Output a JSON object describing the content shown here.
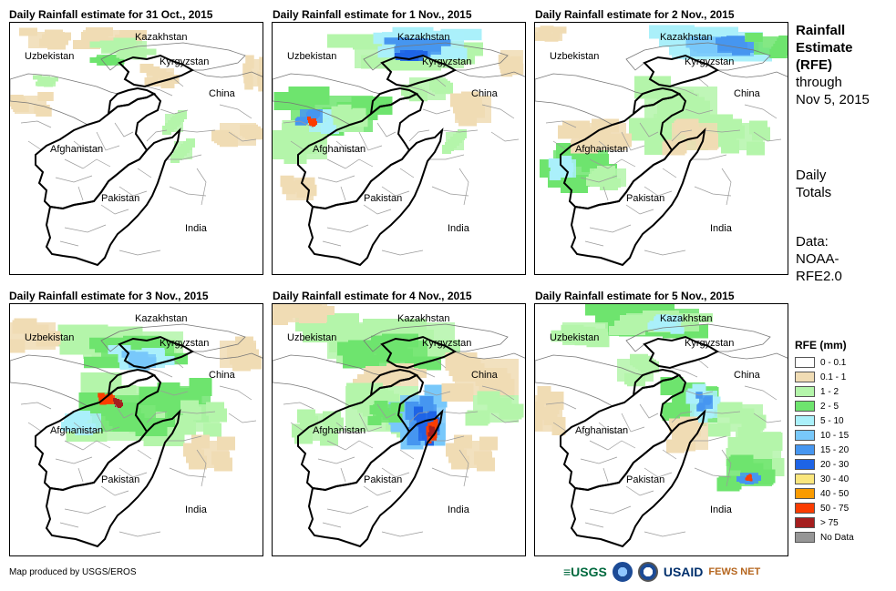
{
  "panels": [
    {
      "title": "Daily Rainfall estimate for 31 Oct., 2015"
    },
    {
      "title": "Daily Rainfall estimate for 1 Nov., 2015"
    },
    {
      "title": "Daily Rainfall estimate for 2 Nov., 2015"
    },
    {
      "title": "Daily Rainfall estimate for 3 Nov., 2015"
    },
    {
      "title": "Daily Rainfall estimate for 4 Nov., 2015"
    },
    {
      "title": "Daily Rainfall estimate for 5 Nov., 2015"
    }
  ],
  "map_labels": {
    "kazakhstan": "Kazakhstan",
    "uzbekistan": "Uzbekistan",
    "kyrgyzstan": "Kyrgyzstan",
    "china": "China",
    "afghanistan": "Afghanistan",
    "pakistan": "Pakistan",
    "india": "India"
  },
  "sidebar": {
    "title_line1": "Rainfall",
    "title_line2": "Estimate",
    "title_line3": "(RFE)",
    "title_line4": "through",
    "title_line5": "Nov 5, 2015",
    "totals_line1": "Daily",
    "totals_line2": "Totals",
    "data_line1": "Data:",
    "data_line2": "NOAA-",
    "data_line3": "RFE2.0"
  },
  "legend": {
    "title": "RFE (mm)",
    "items": [
      {
        "label": "0 - 0.1",
        "color": "#ffffff"
      },
      {
        "label": "0.1 - 1",
        "color": "#f0dcb4"
      },
      {
        "label": "1 - 2",
        "color": "#b4f5aa"
      },
      {
        "label": "2 - 5",
        "color": "#6ee46e"
      },
      {
        "label": "5 - 10",
        "color": "#aaf0fa"
      },
      {
        "label": "10 - 15",
        "color": "#78c8fa"
      },
      {
        "label": "15 - 20",
        "color": "#4696f0"
      },
      {
        "label": "20 - 30",
        "color": "#1e64e6"
      },
      {
        "label": "30 - 40",
        "color": "#fae67d"
      },
      {
        "label": "40 - 50",
        "color": "#fa9b00"
      },
      {
        "label": "50 - 75",
        "color": "#fa3c00"
      },
      {
        "label": "> 75",
        "color": "#a51e1e"
      },
      {
        "label": "No Data",
        "color": "#969696"
      }
    ]
  },
  "footer": {
    "credit": "Map produced by USGS/EROS"
  },
  "logos": {
    "usgs": "≡USGS",
    "usaid": "USAID",
    "fews": "FEWS NET"
  }
}
